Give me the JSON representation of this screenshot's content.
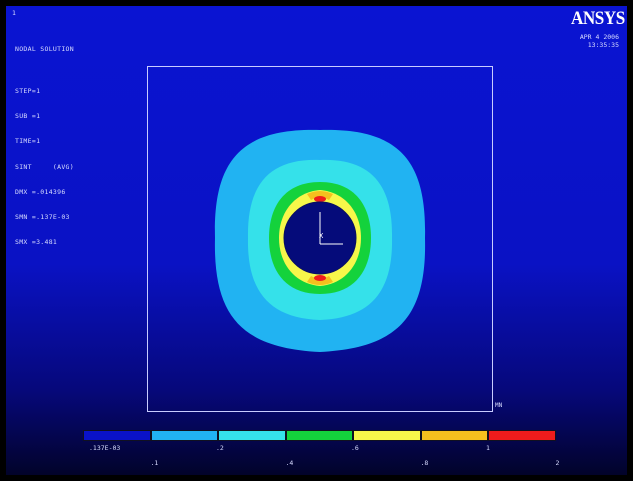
{
  "window_number": "1",
  "logo": "ANSYS",
  "date_line1": "APR  4 2006",
  "date_line2": "13:35:35",
  "info_lines": [
    "NODAL SOLUTION",
    "",
    "STEP=1",
    "SUB =1",
    "TIME=1",
    "SINT     (AVG)",
    "DMX =.014396",
    "SMN =.137E-03",
    "SMX =3.481"
  ],
  "mn_label": "MN",
  "mx_label": "X",
  "legend": {
    "colors": [
      "#0a12c8",
      "#21b3f2",
      "#35e1ea",
      "#14d23c",
      "#f7f74a",
      "#f5c01e",
      "#ee1c1c"
    ],
    "labels_top": [
      ".137E-03",
      ".2",
      ".6",
      "1"
    ],
    "labels_bottom": [
      ".1",
      ".4",
      ".8",
      "2"
    ]
  },
  "colors": {
    "background_top": "#0a14d2",
    "band_outer": "#21b3f2",
    "band_mid": "#35e1ea",
    "band_green": "#14d23c",
    "band_yellow": "#f7f74a",
    "band_orange": "#f5c01e",
    "band_red": "#ee1c1c",
    "hole": "#050b7a"
  }
}
